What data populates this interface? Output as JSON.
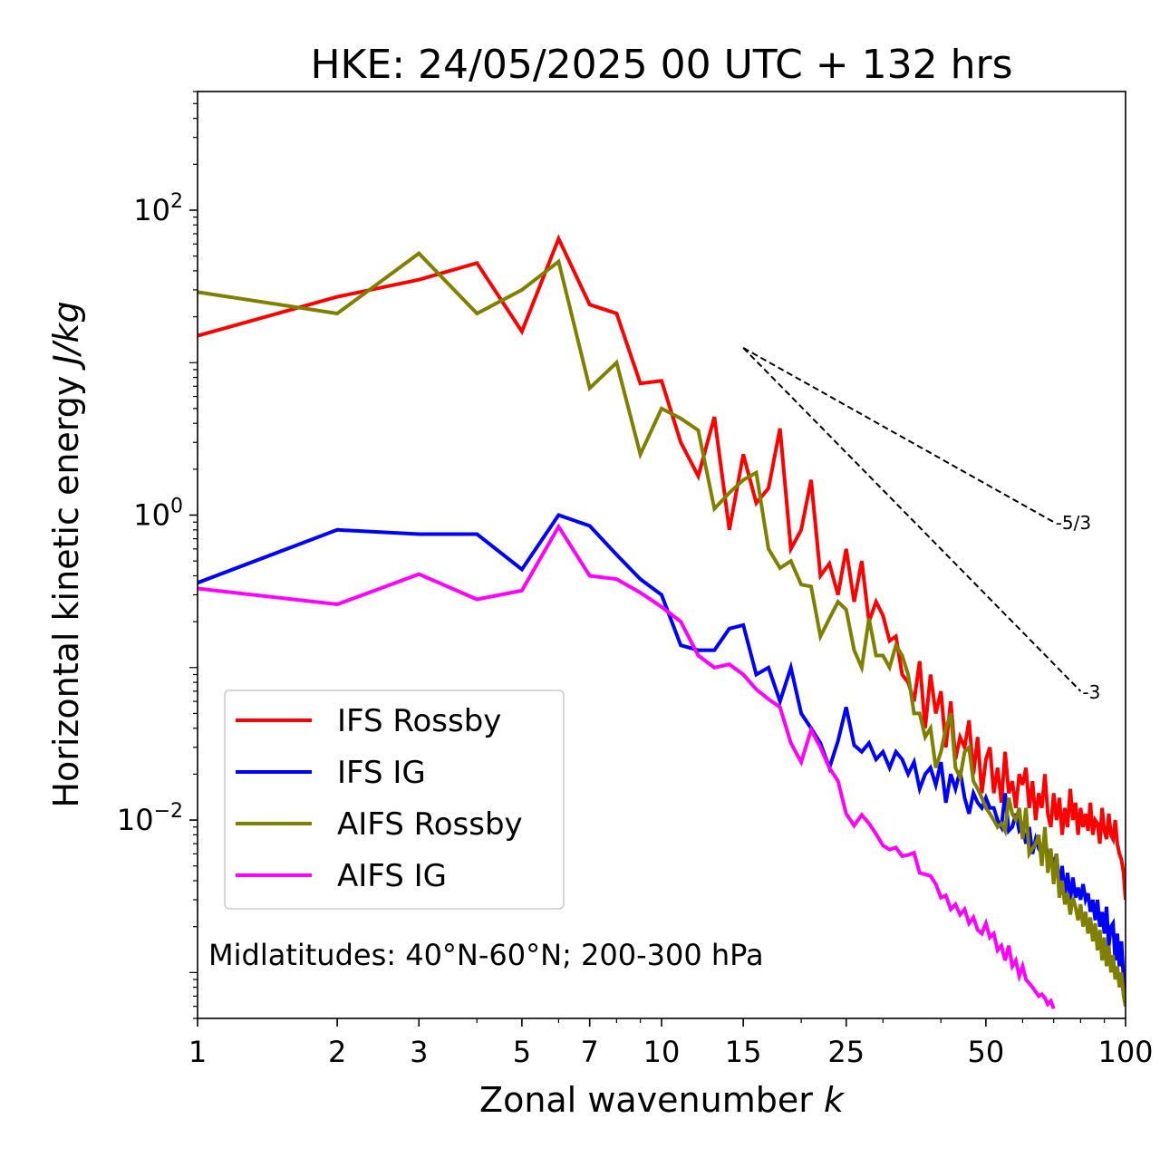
{
  "chart_data": {
    "type": "line",
    "title": "HKE: 24/05/2025 00 UTC + 132 hrs",
    "xlabel_text": "Zonal wavenumber ",
    "xlabel_var": "k",
    "ylabel_text": "Horizontal kinetic energy ",
    "ylabel_unit": "J/kg",
    "xscale": "log",
    "yscale": "log",
    "xlim": [
      1,
      100
    ],
    "ylim": [
      0.0005,
      600
    ],
    "x_ticks": [
      1,
      2,
      3,
      5,
      7,
      10,
      15,
      25,
      50,
      100
    ],
    "x_tick_labels": [
      "1",
      "2",
      "3",
      "5",
      "7",
      "10",
      "15",
      "25",
      "50",
      "100"
    ],
    "y_ticks": [
      {
        "value": 100,
        "base": "10",
        "exp": "2"
      },
      {
        "value": 1,
        "base": "10",
        "exp": "0"
      },
      {
        "value": 0.01,
        "base": "10",
        "exp": "−2"
      }
    ],
    "annotation": "Midlatitudes: 40°N-60°N; 200-300 hPa",
    "legend_placement": "lower-left",
    "reference_lines": [
      {
        "label": "-5/3",
        "x": [
          15,
          70
        ],
        "y": [
          12.5,
          0.9
        ]
      },
      {
        "label": "-3",
        "x": [
          15,
          80
        ],
        "y": [
          12.5,
          0.07
        ]
      }
    ],
    "series": [
      {
        "name": "IFS Rossby",
        "color": "#ff0000",
        "x": [
          1,
          2,
          3,
          4,
          5,
          6,
          7,
          8,
          9,
          10,
          11,
          12,
          13,
          14,
          15,
          16,
          17,
          18,
          19,
          20,
          21,
          22,
          23,
          24,
          25,
          26,
          27,
          28,
          29,
          30,
          31,
          32,
          33,
          34,
          35,
          36,
          37,
          38,
          39,
          40,
          41,
          42,
          43,
          44,
          45,
          46,
          47,
          48,
          49,
          50,
          51,
          52,
          53,
          54,
          55,
          56,
          57,
          58,
          59,
          60,
          61,
          62,
          63,
          64,
          65,
          66,
          67,
          68,
          69,
          70,
          71,
          72,
          73,
          74,
          75,
          76,
          77,
          78,
          79,
          80,
          81,
          82,
          83,
          84,
          85,
          86,
          87,
          88,
          89,
          90,
          91,
          92,
          93,
          94,
          95,
          96,
          97,
          98,
          99,
          100
        ],
        "y": [
          15,
          27,
          35,
          45,
          16,
          65,
          24,
          21,
          7.3,
          7.6,
          3.0,
          1.8,
          4.4,
          0.8,
          2.5,
          1.2,
          1.5,
          3.7,
          0.6,
          0.8,
          1.7,
          0.4,
          0.48,
          0.3,
          0.6,
          0.27,
          0.5,
          0.2,
          0.27,
          0.22,
          0.15,
          0.16,
          0.09,
          0.08,
          0.06,
          0.11,
          0.04,
          0.09,
          0.05,
          0.07,
          0.03,
          0.06,
          0.025,
          0.035,
          0.03,
          0.045,
          0.02,
          0.035,
          0.015,
          0.025,
          0.03,
          0.015,
          0.022,
          0.013,
          0.028,
          0.015,
          0.018,
          0.012,
          0.02,
          0.017,
          0.022,
          0.012,
          0.018,
          0.01,
          0.015,
          0.012,
          0.02,
          0.011,
          0.009,
          0.015,
          0.01,
          0.014,
          0.008,
          0.012,
          0.009,
          0.016,
          0.01,
          0.013,
          0.008,
          0.012,
          0.009,
          0.011,
          0.0085,
          0.013,
          0.008,
          0.01,
          0.0095,
          0.007,
          0.012,
          0.0085,
          0.0075,
          0.011,
          0.008,
          0.0075,
          0.01,
          0.007,
          0.006,
          0.0055,
          0.0045,
          0.003
        ]
      },
      {
        "name": "IFS IG",
        "color": "#0000ff",
        "x": [
          1,
          2,
          3,
          4,
          5,
          6,
          7,
          8,
          9,
          10,
          11,
          12,
          13,
          14,
          15,
          16,
          17,
          18,
          19,
          20,
          21,
          22,
          23,
          24,
          25,
          26,
          27,
          28,
          29,
          30,
          31,
          32,
          33,
          34,
          35,
          36,
          37,
          38,
          39,
          40,
          41,
          42,
          43,
          44,
          45,
          46,
          47,
          48,
          49,
          50,
          51,
          52,
          53,
          54,
          55,
          56,
          57,
          58,
          59,
          60,
          61,
          62,
          63,
          64,
          65,
          66,
          67,
          68,
          69,
          70,
          71,
          72,
          73,
          74,
          75,
          76,
          77,
          78,
          79,
          80,
          81,
          82,
          83,
          84,
          85,
          86,
          87,
          88,
          89,
          90,
          91,
          92,
          93,
          94,
          95,
          96,
          97,
          98,
          99,
          100
        ],
        "y": [
          0.36,
          0.8,
          0.75,
          0.75,
          0.44,
          1.0,
          0.85,
          0.55,
          0.38,
          0.3,
          0.14,
          0.13,
          0.13,
          0.18,
          0.19,
          0.09,
          0.1,
          0.06,
          0.1,
          0.05,
          0.04,
          0.032,
          0.022,
          0.033,
          0.055,
          0.031,
          0.028,
          0.032,
          0.025,
          0.028,
          0.022,
          0.028,
          0.025,
          0.02,
          0.024,
          0.016,
          0.02,
          0.022,
          0.017,
          0.024,
          0.013,
          0.02,
          0.016,
          0.021,
          0.014,
          0.011,
          0.015,
          0.013,
          0.012,
          0.014,
          0.012,
          0.012,
          0.01,
          0.009,
          0.015,
          0.0085,
          0.009,
          0.011,
          0.0085,
          0.009,
          0.007,
          0.009,
          0.006,
          0.0075,
          0.0065,
          0.006,
          0.008,
          0.0055,
          0.006,
          0.005,
          0.006,
          0.0035,
          0.005,
          0.0032,
          0.0045,
          0.003,
          0.0042,
          0.0031,
          0.0036,
          0.003,
          0.0038,
          0.003,
          0.0033,
          0.0025,
          0.003,
          0.0022,
          0.003,
          0.002,
          0.0025,
          0.0018,
          0.0027,
          0.0015,
          0.002,
          0.0021,
          0.0012,
          0.0018,
          0.0011,
          0.0016,
          0.0009,
          0.0006
        ]
      },
      {
        "name": "AIFS Rossby",
        "color": "#808000",
        "x": [
          1,
          2,
          3,
          4,
          5,
          6,
          7,
          8,
          9,
          10,
          11,
          12,
          13,
          14,
          15,
          16,
          17,
          18,
          19,
          20,
          21,
          22,
          23,
          24,
          25,
          26,
          27,
          28,
          29,
          30,
          31,
          32,
          33,
          34,
          35,
          36,
          37,
          38,
          39,
          40,
          41,
          42,
          43,
          44,
          45,
          46,
          47,
          48,
          49,
          50,
          51,
          52,
          53,
          54,
          55,
          56,
          57,
          58,
          59,
          60,
          61,
          62,
          63,
          64,
          65,
          66,
          67,
          68,
          69,
          70,
          71,
          72,
          73,
          74,
          75,
          76,
          77,
          78,
          79,
          80,
          81,
          82,
          83,
          84,
          85,
          86,
          87,
          88,
          89,
          90,
          91,
          92,
          93,
          94,
          95,
          96,
          97,
          98,
          99,
          100
        ],
        "y": [
          29,
          21,
          52,
          21,
          30,
          46,
          6.8,
          10,
          2.5,
          5.0,
          4.3,
          3.6,
          1.1,
          1.4,
          1.7,
          1.9,
          0.6,
          0.45,
          0.5,
          0.35,
          0.34,
          0.16,
          0.21,
          0.27,
          0.24,
          0.13,
          0.1,
          0.21,
          0.12,
          0.12,
          0.1,
          0.14,
          0.12,
          0.09,
          0.05,
          0.05,
          0.035,
          0.04,
          0.022,
          0.028,
          0.04,
          0.05,
          0.022,
          0.019,
          0.028,
          0.03,
          0.018,
          0.016,
          0.014,
          0.012,
          0.011,
          0.01,
          0.009,
          0.0095,
          0.0085,
          0.014,
          0.011,
          0.01,
          0.012,
          0.0075,
          0.012,
          0.006,
          0.0065,
          0.007,
          0.008,
          0.005,
          0.009,
          0.0045,
          0.0065,
          0.0038,
          0.006,
          0.0031,
          0.004,
          0.0028,
          0.0033,
          0.0024,
          0.0031,
          0.0027,
          0.0022,
          0.0028,
          0.002,
          0.0025,
          0.0018,
          0.0023,
          0.0016,
          0.0021,
          0.0014,
          0.0019,
          0.0012,
          0.0017,
          0.0011,
          0.0015,
          0.001,
          0.0013,
          0.0009,
          0.0011,
          0.0008,
          0.001,
          0.0007,
          0.0006
        ]
      },
      {
        "name": "AIFS IG",
        "color": "#ff00ff",
        "x": [
          1,
          2,
          3,
          4,
          5,
          6,
          7,
          8,
          9,
          10,
          11,
          12,
          13,
          14,
          15,
          16,
          17,
          18,
          19,
          20,
          21,
          22,
          23,
          24,
          25,
          26,
          27,
          28,
          29,
          30,
          31,
          32,
          33,
          34,
          35,
          36,
          37,
          38,
          39,
          40,
          41,
          42,
          43,
          44,
          45,
          46,
          47,
          48,
          49,
          50,
          51,
          52,
          53,
          54,
          55,
          56,
          57,
          58,
          59,
          60,
          61,
          62,
          63,
          64,
          65,
          66,
          67,
          68,
          69,
          70
        ],
        "y": [
          0.33,
          0.26,
          0.41,
          0.28,
          0.32,
          0.84,
          0.4,
          0.38,
          0.31,
          0.25,
          0.2,
          0.12,
          0.1,
          0.105,
          0.09,
          0.072,
          0.062,
          0.055,
          0.032,
          0.024,
          0.039,
          0.03,
          0.022,
          0.018,
          0.011,
          0.0092,
          0.0108,
          0.0095,
          0.0081,
          0.0068,
          0.0064,
          0.0066,
          0.0058,
          0.0059,
          0.0061,
          0.0045,
          0.0044,
          0.0043,
          0.0038,
          0.0031,
          0.0032,
          0.0026,
          0.0028,
          0.0024,
          0.0026,
          0.0021,
          0.0023,
          0.0019,
          0.0018,
          0.0021,
          0.0017,
          0.0018,
          0.0014,
          0.0015,
          0.0012,
          0.0015,
          0.0011,
          0.0012,
          0.00095,
          0.0011,
          0.0009,
          0.00085,
          0.0008,
          0.00075,
          0.0007,
          0.00072,
          0.00068,
          0.00062,
          0.00065,
          0.00058
        ]
      }
    ]
  }
}
